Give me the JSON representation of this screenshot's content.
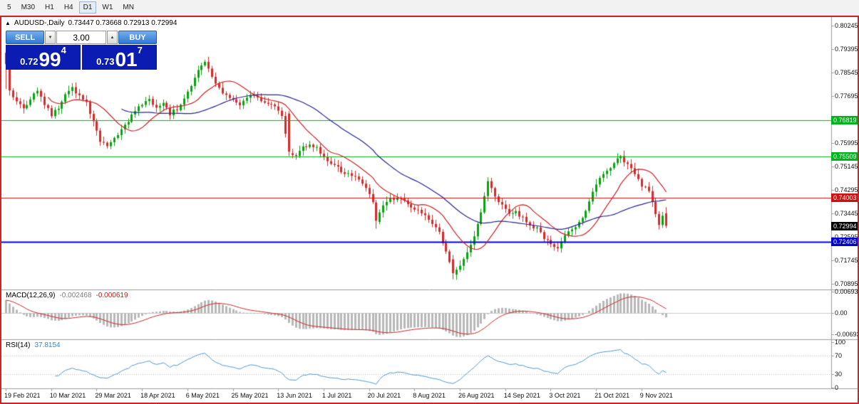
{
  "toolbar": {
    "timeframes": [
      "5",
      "M30",
      "H1",
      "H4",
      "D1",
      "W1",
      "MN"
    ],
    "active_timeframe": "D1"
  },
  "chart": {
    "symbol_marker": "▲",
    "title": "AUDUSD-,Daily",
    "ohlc": [
      "0.73447",
      "0.73668",
      "0.72913",
      "0.72994"
    ],
    "trade_panel": {
      "sell_label": "SELL",
      "buy_label": "BUY",
      "volume": "3.00",
      "spinner_down_icon": "▼",
      "spinner_up_icon": "▲",
      "bid": {
        "prefix": "0.72",
        "big": "99",
        "sup": "4"
      },
      "ask": {
        "prefix": "0.73",
        "big": "01",
        "sup": "7"
      }
    },
    "price_axis_labels": [
      "0.80245",
      "0.79395",
      "0.78545",
      "0.77695",
      "0.76845",
      "0.75995",
      "0.75145",
      "0.74295",
      "0.73445",
      "0.72595",
      "0.71745",
      "0.70895"
    ],
    "levels": [
      {
        "label": "0.76819",
        "price": 0.76819,
        "color": "#00b21b",
        "width": 1
      },
      {
        "label": "0.75509",
        "price": 0.75509,
        "color": "#00b21b",
        "width": 1
      },
      {
        "label": "0.74003",
        "price": 0.74003,
        "color": "#cc1111",
        "width": 1
      },
      {
        "label": "0.72406",
        "price": 0.72406,
        "color": "#0000cc",
        "width": 2
      }
    ],
    "current_price": {
      "label": "0.72994",
      "price": 0.72994,
      "bg": "#000000"
    },
    "date_axis_labels": [
      "19 Feb 2021",
      "10 Mar 2021",
      "29 Mar 2021",
      "18 Apr 2021",
      "6 May 2021",
      "25 May 2021",
      "13 Jun 2021",
      "1 Jul 2021",
      "20 Jul 2021",
      "8 Aug 2021",
      "26 Aug 2021",
      "14 Sep 2021",
      "3 Oct 2021",
      "21 Oct 2021",
      "9 Nov 2021"
    ]
  },
  "indicators": {
    "macd": {
      "title": "MACD(12,26,9)",
      "value_main": "-0.002468",
      "value_signal": "-0.000619",
      "axis_labels": [
        "0.006936",
        "0.00",
        "-0.006936"
      ],
      "fast": 12,
      "slow": 26,
      "signal": 9,
      "histogram_color": "#b8b8b8",
      "signal_color": "#cc2222"
    },
    "rsi": {
      "title": "RSI(14)",
      "value": "37.8154",
      "axis_labels": [
        "100",
        "70",
        "30",
        "0"
      ],
      "period": 14,
      "levels": [
        70,
        30
      ],
      "line_color": "#4a96d2"
    }
  },
  "chart_data": {
    "type": "candlestick",
    "symbol": "AUDUSD-",
    "timeframe": "Daily",
    "bars": 190,
    "visible_range": {
      "first_label": "19 Feb 2021",
      "last_label": "9 Nov 2021"
    },
    "y_axis": {
      "top": 0.80245,
      "bottom": 0.70895,
      "step": 0.0085
    },
    "last_bar": {
      "o": 0.73447,
      "h": 0.73668,
      "l": 0.72913,
      "c": 0.72994
    },
    "up_color": "#07a30e",
    "down_color": "#d42a2a",
    "ma": [
      {
        "period": 13,
        "color": "#cc2222"
      },
      {
        "period": 34,
        "color": "#24248f"
      }
    ],
    "price_path": [
      [
        0,
        0.7885
      ],
      [
        1,
        0.779
      ],
      [
        3,
        0.775
      ],
      [
        5,
        0.7718
      ],
      [
        7,
        0.776
      ],
      [
        9,
        0.7795
      ],
      [
        11,
        0.7738
      ],
      [
        13,
        0.77
      ],
      [
        15,
        0.7728
      ],
      [
        17,
        0.7772
      ],
      [
        19,
        0.7798
      ],
      [
        21,
        0.7768
      ],
      [
        23,
        0.7745
      ],
      [
        25,
        0.7672
      ],
      [
        27,
        0.7608
      ],
      [
        29,
        0.759
      ],
      [
        31,
        0.7618
      ],
      [
        33,
        0.7648
      ],
      [
        35,
        0.768
      ],
      [
        37,
        0.7712
      ],
      [
        39,
        0.7742
      ],
      [
        41,
        0.7758
      ],
      [
        43,
        0.7726
      ],
      [
        45,
        0.7748
      ],
      [
        47,
        0.7706
      ],
      [
        49,
        0.7722
      ],
      [
        51,
        0.7758
      ],
      [
        53,
        0.7808
      ],
      [
        55,
        0.7862
      ],
      [
        57,
        0.7888
      ],
      [
        59,
        0.784
      ],
      [
        61,
        0.7795
      ],
      [
        63,
        0.7772
      ],
      [
        65,
        0.7752
      ],
      [
        67,
        0.7742
      ],
      [
        69,
        0.7762
      ],
      [
        71,
        0.7772
      ],
      [
        73,
        0.7752
      ],
      [
        75,
        0.7738
      ],
      [
        77,
        0.7728
      ],
      [
        79,
        0.7702
      ],
      [
        81,
        0.7568
      ],
      [
        83,
        0.7548
      ],
      [
        85,
        0.7582
      ],
      [
        87,
        0.7598
      ],
      [
        89,
        0.7578
      ],
      [
        91,
        0.7548
      ],
      [
        93,
        0.7528
      ],
      [
        95,
        0.7508
      ],
      [
        97,
        0.7488
      ],
      [
        99,
        0.7478
      ],
      [
        101,
        0.7468
      ],
      [
        103,
        0.7442
      ],
      [
        105,
        0.7388
      ],
      [
        106,
        0.7318
      ],
      [
        108,
        0.7368
      ],
      [
        110,
        0.7392
      ],
      [
        112,
        0.7402
      ],
      [
        114,
        0.7388
      ],
      [
        116,
        0.7362
      ],
      [
        118,
        0.7352
      ],
      [
        120,
        0.7338
      ],
      [
        122,
        0.7312
      ],
      [
        124,
        0.7272
      ],
      [
        126,
        0.7212
      ],
      [
        128,
        0.7128
      ],
      [
        130,
        0.7152
      ],
      [
        132,
        0.7208
      ],
      [
        134,
        0.7262
      ],
      [
        136,
        0.7348
      ],
      [
        138,
        0.7458
      ],
      [
        140,
        0.7412
      ],
      [
        142,
        0.7372
      ],
      [
        144,
        0.7338
      ],
      [
        146,
        0.7348
      ],
      [
        148,
        0.7328
      ],
      [
        150,
        0.7302
      ],
      [
        152,
        0.7288
      ],
      [
        154,
        0.7252
      ],
      [
        156,
        0.7232
      ],
      [
        158,
        0.7222
      ],
      [
        160,
        0.7262
      ],
      [
        162,
        0.7288
      ],
      [
        164,
        0.7308
      ],
      [
        166,
        0.7358
      ],
      [
        168,
        0.7418
      ],
      [
        170,
        0.7468
      ],
      [
        172,
        0.7498
      ],
      [
        174,
        0.7532
      ],
      [
        176,
        0.7548
      ],
      [
        178,
        0.7522
      ],
      [
        180,
        0.7482
      ],
      [
        182,
        0.7448
      ],
      [
        184,
        0.7422
      ],
      [
        185,
        0.7392
      ],
      [
        186,
        0.7342
      ],
      [
        187,
        0.7302
      ],
      [
        188,
        0.7338
      ],
      [
        189,
        0.72994
      ]
    ],
    "overrides": {
      "0": {
        "o": 0.7926,
        "h": 0.7933,
        "l": 0.7795,
        "c": 0.7885
      },
      "81": {
        "o": 0.7706,
        "h": 0.7715,
        "l": 0.7552,
        "c": 0.7568
      },
      "106": {
        "o": 0.7384,
        "h": 0.7393,
        "l": 0.7289,
        "c": 0.7318
      },
      "128": {
        "o": 0.7178,
        "h": 0.7194,
        "l": 0.7106,
        "c": 0.7128
      },
      "176": {
        "h": 0.7556
      },
      "189": {
        "o": 0.73447,
        "h": 0.73668,
        "l": 0.72913,
        "c": 0.72994
      }
    }
  }
}
